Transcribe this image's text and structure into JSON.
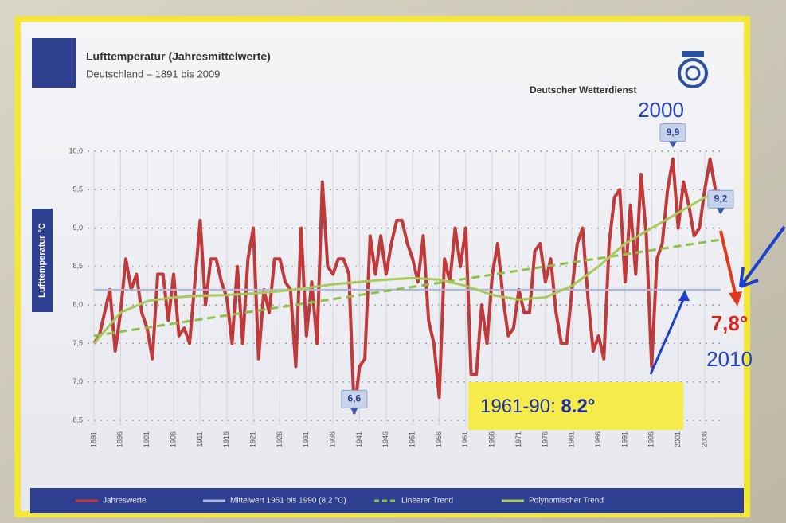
{
  "chart_data": {
    "type": "line",
    "title": "Lufttemperatur (Jahresmittelwerte)",
    "subtitle": "Deutschland – 1891 bis 2009",
    "source": "Deutscher Wetterdienst",
    "y_label": "Lufttemperatur °C",
    "xlim": [
      1891,
      2009
    ],
    "ylim": [
      6.5,
      10.0
    ],
    "yticks": [
      {
        "value": 6.5,
        "label": "6,5"
      },
      {
        "value": 7.0,
        "label": "7,0"
      },
      {
        "value": 7.5,
        "label": "7,5"
      },
      {
        "value": 8.0,
        "label": "8,0"
      },
      {
        "value": 8.5,
        "label": "8,5"
      },
      {
        "value": 9.0,
        "label": "9,0"
      },
      {
        "value": 9.5,
        "label": "9,5"
      },
      {
        "value": 10.0,
        "label": "10,0"
      }
    ],
    "xticks": [
      1891,
      1896,
      1901,
      1906,
      1911,
      1916,
      1921,
      1926,
      1931,
      1936,
      1941,
      1946,
      1951,
      1956,
      1961,
      1966,
      1971,
      1976,
      1981,
      1986,
      1991,
      1996,
      2001,
      2006
    ],
    "grid": true,
    "x": [
      1891,
      1892,
      1893,
      1894,
      1895,
      1896,
      1897,
      1898,
      1899,
      1900,
      1901,
      1902,
      1903,
      1904,
      1905,
      1906,
      1907,
      1908,
      1909,
      1910,
      1911,
      1912,
      1913,
      1914,
      1915,
      1916,
      1917,
      1918,
      1919,
      1920,
      1921,
      1922,
      1923,
      1924,
      1925,
      1926,
      1927,
      1928,
      1929,
      1930,
      1931,
      1932,
      1933,
      1934,
      1935,
      1936,
      1937,
      1938,
      1939,
      1940,
      1941,
      1942,
      1943,
      1944,
      1945,
      1946,
      1947,
      1948,
      1949,
      1950,
      1951,
      1952,
      1953,
      1954,
      1955,
      1956,
      1957,
      1958,
      1959,
      1960,
      1961,
      1962,
      1963,
      1964,
      1965,
      1966,
      1967,
      1968,
      1969,
      1970,
      1971,
      1972,
      1973,
      1974,
      1975,
      1976,
      1977,
      1978,
      1979,
      1980,
      1981,
      1982,
      1983,
      1984,
      1985,
      1986,
      1987,
      1988,
      1989,
      1990,
      1991,
      1992,
      1993,
      1994,
      1995,
      1996,
      1997,
      1998,
      1999,
      2000,
      2001,
      2002,
      2003,
      2004,
      2005,
      2006,
      2007,
      2008,
      2009
    ],
    "series": [
      {
        "name": "Jahreswerte",
        "color": "#c0393b",
        "width": 4,
        "dash": false,
        "values": [
          7.5,
          7.6,
          7.9,
          8.2,
          7.4,
          7.9,
          8.6,
          8.2,
          8.4,
          7.9,
          7.7,
          7.3,
          8.4,
          8.4,
          7.8,
          8.4,
          7.6,
          7.7,
          7.5,
          8.3,
          9.1,
          8.0,
          8.6,
          8.6,
          8.3,
          8.1,
          7.5,
          8.5,
          7.5,
          8.6,
          9.0,
          7.3,
          8.2,
          7.9,
          8.6,
          8.6,
          8.3,
          8.2,
          7.2,
          9.0,
          7.6,
          8.3,
          7.5,
          9.6,
          8.5,
          8.4,
          8.6,
          8.6,
          8.4,
          6.6,
          7.2,
          7.3,
          8.9,
          8.4,
          8.9,
          8.4,
          8.8,
          9.1,
          9.1,
          8.8,
          8.6,
          8.3,
          8.9,
          7.8,
          7.5,
          6.8,
          8.6,
          8.3,
          9.0,
          8.5,
          9.0,
          7.1,
          7.1,
          8.0,
          7.5,
          8.4,
          8.8,
          8.1,
          7.6,
          7.7,
          8.2,
          7.9,
          7.9,
          8.7,
          8.8,
          8.3,
          8.6,
          7.9,
          7.5,
          7.5,
          8.2,
          8.8,
          9.0,
          8.1,
          7.4,
          7.6,
          7.3,
          8.8,
          9.4,
          9.5,
          8.3,
          9.3,
          8.4,
          9.7,
          8.9,
          7.2,
          8.6,
          8.8,
          9.5,
          9.9,
          9.0,
          9.6,
          9.3,
          8.9,
          9.0,
          9.5,
          9.9,
          9.5,
          9.2
        ]
      },
      {
        "name": "Mittelwert 1961 bis 1990 (8,2 °C)",
        "color": "#a9b8dc",
        "width": 2,
        "dash": false,
        "x": [
          1891,
          2009
        ],
        "values": [
          8.2,
          8.2
        ]
      },
      {
        "name": "Linearer Trend",
        "color": "#8fbf4a",
        "width": 3,
        "dash": true,
        "x": [
          1891,
          2009
        ],
        "values": [
          7.6,
          8.85
        ]
      },
      {
        "name": "Polynomischer Trend",
        "color": "#a7c95a",
        "width": 3,
        "dash": false,
        "x": [
          1891,
          1896,
          1901,
          1906,
          1911,
          1916,
          1921,
          1926,
          1931,
          1936,
          1941,
          1946,
          1951,
          1956,
          1961,
          1966,
          1971,
          1976,
          1981,
          1986,
          1991,
          1996,
          2001,
          2006,
          2009
        ],
        "values": [
          7.5,
          7.9,
          8.05,
          8.1,
          8.12,
          8.13,
          8.15,
          8.18,
          8.22,
          8.27,
          8.3,
          8.33,
          8.35,
          8.33,
          8.25,
          8.13,
          8.07,
          8.1,
          8.25,
          8.5,
          8.8,
          9.0,
          9.2,
          9.4,
          9.45
        ]
      }
    ],
    "callouts": [
      {
        "x": 2000,
        "value": 9.9,
        "label": "9,9"
      },
      {
        "x": 1940,
        "value": 6.6,
        "label": "6,6"
      },
      {
        "x": 2009,
        "value": 9.2,
        "label": "9,2"
      }
    ],
    "overlay": {
      "year_top": "2000",
      "year_bottom": "2010",
      "forecast": "7,8°",
      "baseline_prefix": "1961-90: ",
      "baseline_value": "8.2°"
    }
  }
}
